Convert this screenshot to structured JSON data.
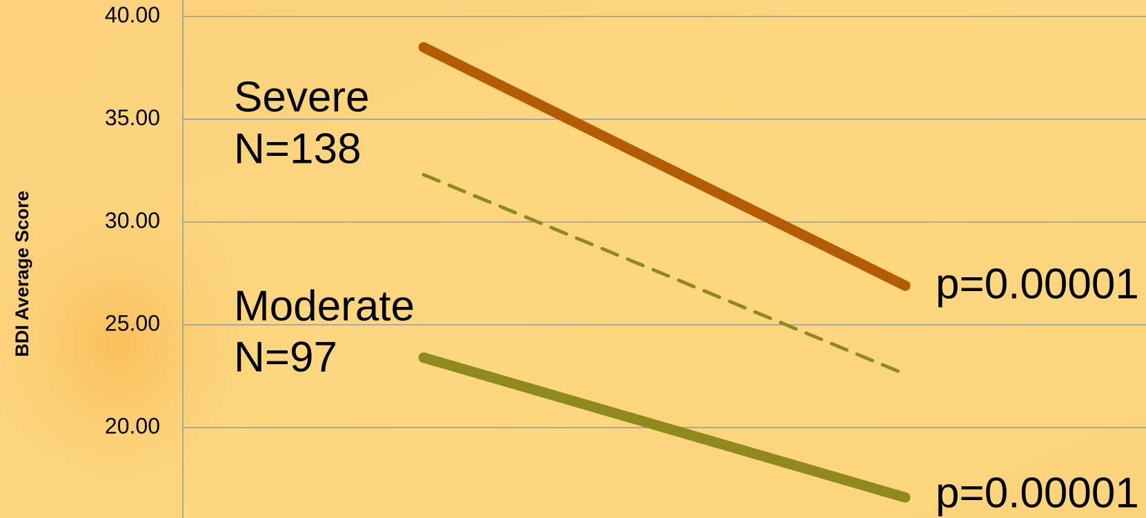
{
  "chart_data": {
    "type": "line",
    "y_label": "BDI Average Score",
    "categories": [
      null,
      null
    ],
    "series": [
      {
        "color": "#b35c05",
        "line_style": "solid",
        "values": [
          38.5,
          26.9
        ]
      },
      {
        "color": "#8f8a1e",
        "line_style": "dashed",
        "values": [
          32.3,
          22.6
        ]
      },
      {
        "color": "#8f8a1e",
        "line_style": "solid",
        "values": [
          23.4,
          16.6
        ]
      }
    ],
    "ylim": [
      15.6,
      40.8
    ],
    "yticks": [
      {
        "value": 20,
        "label": "20.00"
      },
      {
        "value": 25,
        "label": "25.00"
      },
      {
        "value": 30,
        "label": "30.00"
      },
      {
        "value": 35,
        "label": "35.00"
      },
      {
        "value": 40,
        "label": "40.00"
      }
    ],
    "grid": true,
    "annotations": [
      "Severe",
      "N=138",
      "Moderate",
      "N=97",
      "p=0.00001",
      "p=0.00001"
    ]
  }
}
